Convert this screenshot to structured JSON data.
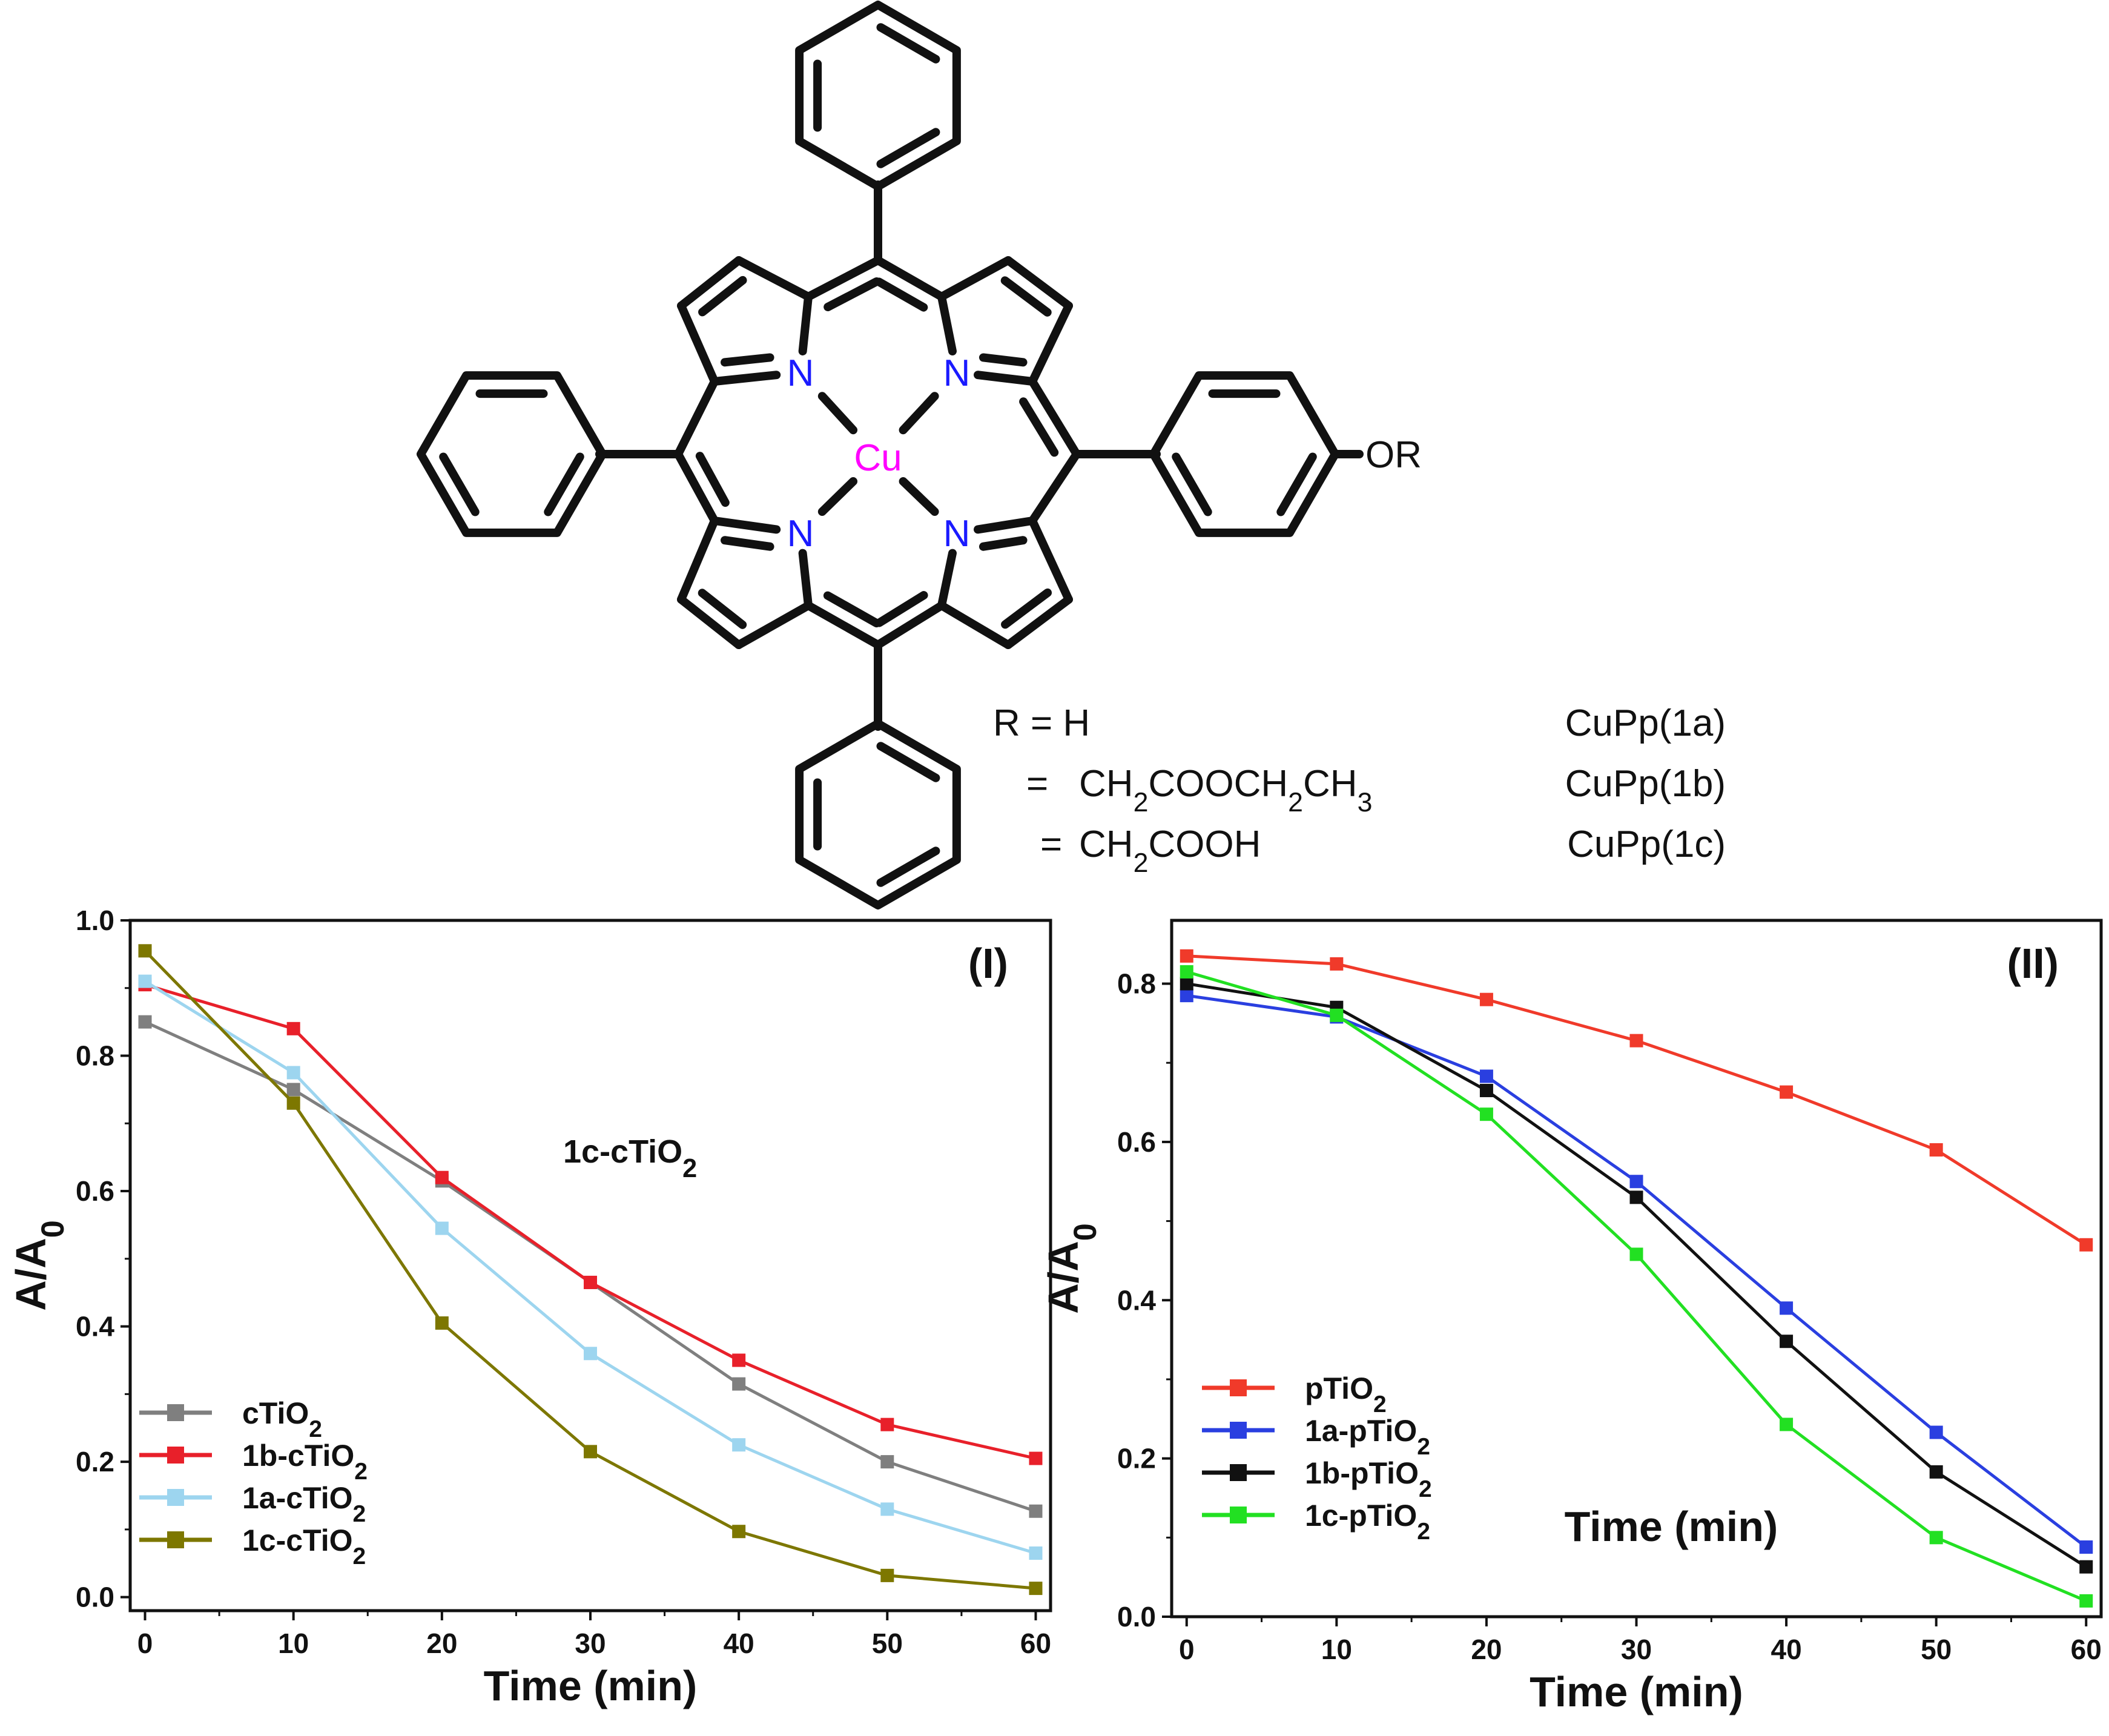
{
  "structure": {
    "metal": "Cu",
    "nitrogen": "N",
    "substituent": "OR",
    "r_groups": [
      {
        "prefix": "R = ",
        "formula": [
          [
            "H",
            false
          ]
        ],
        "compound": "CuPp(1a)"
      },
      {
        "prefix": "= ",
        "formula": [
          [
            "CH",
            false
          ],
          [
            "2",
            true
          ],
          [
            "COOCH",
            false
          ],
          [
            "2",
            true
          ],
          [
            "CH",
            false
          ],
          [
            "3",
            true
          ]
        ],
        "compound": "CuPp(1b)"
      },
      {
        "prefix": "= ",
        "formula": [
          [
            "CH",
            false
          ],
          [
            "2",
            true
          ],
          [
            "COOH",
            false
          ]
        ],
        "compound": "CuPp(1c)"
      }
    ],
    "colors": {
      "bond": "#111111",
      "nitrogen": "#1a1aff",
      "copper": "#ff00ff"
    }
  },
  "chart_data": [
    {
      "type": "line",
      "panel_label": "(I)",
      "annotation": "1c-cTiO2",
      "xlabel": "Time (min)",
      "ylabel": "A/A0",
      "xlim": [
        -1,
        61
      ],
      "ylim": [
        -0.02,
        1.0
      ],
      "xticks": [
        0,
        10,
        20,
        30,
        40,
        50,
        60
      ],
      "yticks": [
        0.0,
        0.2,
        0.4,
        0.6,
        0.8,
        1.0
      ],
      "ytick_labels": [
        "0.0",
        "0.2",
        "0.4",
        "0.6",
        "0.8",
        "1.0"
      ],
      "legend_position": "bottom-left",
      "x": [
        0,
        10,
        20,
        30,
        40,
        50,
        60
      ],
      "series": [
        {
          "name": "cTiO2",
          "color": "#7f7f7f",
          "values": [
            0.85,
            0.75,
            0.615,
            0.465,
            0.315,
            0.2,
            0.127
          ]
        },
        {
          "name": "1b-cTiO2",
          "color": "#e8202a",
          "values": [
            0.905,
            0.84,
            0.62,
            0.465,
            0.35,
            0.255,
            0.205
          ]
        },
        {
          "name": "1a-cTiO2",
          "color": "#9dd5ef",
          "values": [
            0.91,
            0.775,
            0.545,
            0.36,
            0.225,
            0.13,
            0.065
          ]
        },
        {
          "name": "1c-cTiO2",
          "color": "#7d7700",
          "values": [
            0.955,
            0.73,
            0.405,
            0.215,
            0.097,
            0.032,
            0.013
          ]
        }
      ]
    },
    {
      "type": "line",
      "panel_label": "(II)",
      "xlabel": "Time (min)",
      "ylabel": "A/A0",
      "xlim": [
        -1,
        61
      ],
      "ylim": [
        0.0,
        0.88
      ],
      "xticks": [
        0,
        10,
        20,
        30,
        40,
        50,
        60
      ],
      "yticks": [
        0.0,
        0.2,
        0.4,
        0.6,
        0.8
      ],
      "ytick_labels": [
        "0.0",
        "0.2",
        "0.4",
        "0.6",
        "0.8"
      ],
      "legend_position": "bottom-left",
      "x": [
        0,
        10,
        20,
        30,
        40,
        50,
        60
      ],
      "series": [
        {
          "name": "pTiO2",
          "color": "#f03a2a",
          "values": [
            0.835,
            0.825,
            0.78,
            0.728,
            0.663,
            0.59,
            0.47
          ]
        },
        {
          "name": "1a-pTiO2",
          "color": "#2a3fe0",
          "values": [
            0.785,
            0.758,
            0.683,
            0.55,
            0.39,
            0.233,
            0.088
          ]
        },
        {
          "name": "1b-pTiO2",
          "color": "#111111",
          "values": [
            0.8,
            0.77,
            0.665,
            0.53,
            0.348,
            0.183,
            0.063
          ]
        },
        {
          "name": "1c-pTiO2",
          "color": "#22e022",
          "values": [
            0.815,
            0.76,
            0.635,
            0.458,
            0.243,
            0.1,
            0.02
          ]
        }
      ]
    }
  ]
}
